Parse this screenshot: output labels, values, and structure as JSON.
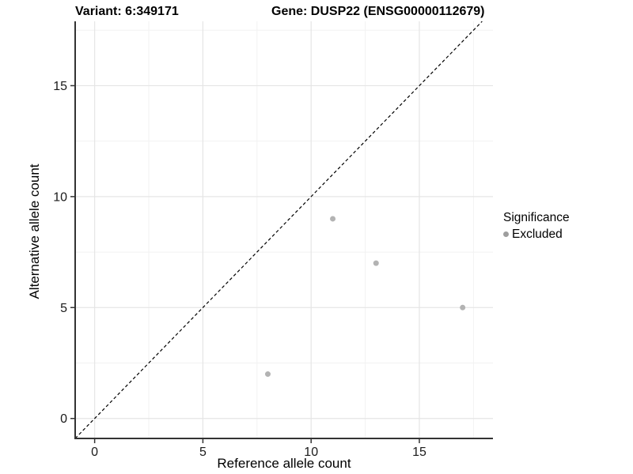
{
  "titles": {
    "left": "Variant: 6:349171",
    "right": "Gene: DUSP22 (ENSG00000112679)"
  },
  "axes": {
    "xlabel": "Reference allele count",
    "ylabel": "Alternative allele count"
  },
  "legend": {
    "title": "Significance",
    "items": [
      {
        "label": "Excluded",
        "color": "#9e9e9e"
      }
    ]
  },
  "chart_data": {
    "type": "scatter",
    "title": "Variant: 6:349171 — Gene: DUSP22 (ENSG00000112679)",
    "xlabel": "Reference allele count",
    "ylabel": "Alternative allele count",
    "xlim": [
      -0.9,
      18.4
    ],
    "ylim": [
      -0.9,
      17.9
    ],
    "xticks": [
      0,
      5,
      10,
      15
    ],
    "yticks": [
      0,
      5,
      10,
      15
    ],
    "minor_ticks": [
      2.5,
      7.5,
      12.5,
      17.5
    ],
    "grid": "on",
    "legend_position": "right",
    "series": [
      {
        "name": "Excluded",
        "color": "#b3b3b3",
        "points": [
          {
            "x": 8,
            "y": 2
          },
          {
            "x": 11,
            "y": 9
          },
          {
            "x": 13,
            "y": 7
          },
          {
            "x": 17,
            "y": 5
          }
        ]
      }
    ],
    "reference_line": {
      "type": "identity",
      "style": "dashed",
      "color": "#000000"
    },
    "colors": {
      "grid_major": "#e5e5e5",
      "grid_minor": "#f2f2f2",
      "axis_line": "#333333",
      "tick_mark": "#333333",
      "tick_label": "#1a1a1a",
      "point": "#b3b3b3"
    }
  }
}
